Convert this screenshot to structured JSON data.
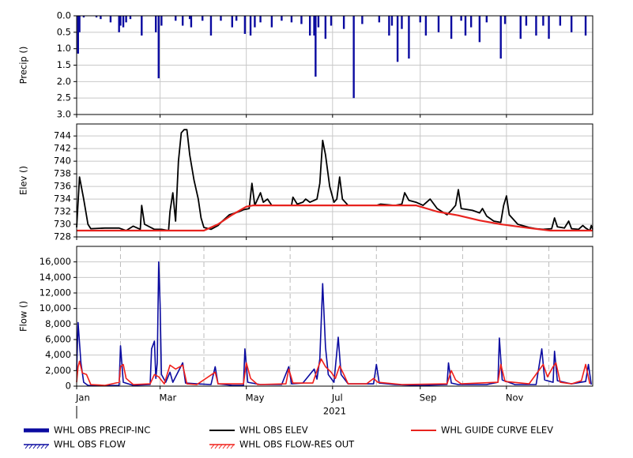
{
  "chart_data": [
    {
      "type": "bar",
      "y_label": "Precip ()",
      "xlim": [
        0,
        365
      ],
      "ylim": [
        3,
        0
      ],
      "xticks": [
        0,
        59,
        120,
        181,
        243,
        304
      ],
      "grid": true,
      "yticks": [
        {
          "value": 0,
          "label": "0.0"
        },
        0.5,
        {
          "value": 1,
          "label": "1.0"
        },
        1.5,
        {
          "value": 2,
          "label": "2.0"
        },
        2.5,
        {
          "value": 3,
          "label": "3.0"
        }
      ],
      "series": [
        {
          "name": "WHL OBS PRECIP-INC",
          "color": "#0a0aa0",
          "x": [
            1,
            2,
            5,
            14,
            17,
            24,
            30,
            31,
            33,
            35,
            38,
            46,
            56,
            58,
            60,
            70,
            75,
            80,
            81,
            89,
            95,
            102,
            110,
            113,
            119,
            123,
            126,
            130,
            138,
            145,
            152,
            159,
            165,
            168,
            169,
            171,
            176,
            180,
            189,
            196,
            202,
            214,
            221,
            223,
            227,
            230,
            235,
            243,
            247,
            256,
            265,
            272,
            275,
            279,
            285,
            290,
            300,
            303,
            314,
            318,
            325,
            330,
            334,
            342,
            350,
            360
          ],
          "values": [
            1.15,
            0.5,
            0.05,
            0.05,
            0.1,
            0.2,
            0.5,
            0.3,
            0.35,
            0.2,
            0.1,
            0.6,
            0.5,
            1.9,
            0.3,
            0.15,
            0.3,
            0.1,
            0.35,
            0.15,
            0.6,
            0.15,
            0.35,
            0.15,
            0.55,
            0.6,
            0.35,
            0.2,
            0.35,
            0.15,
            0.2,
            0.25,
            0.6,
            0.6,
            1.85,
            0.35,
            0.7,
            0.3,
            0.4,
            2.5,
            0.25,
            0.2,
            0.6,
            0.3,
            1.4,
            0.4,
            1.3,
            0.2,
            0.6,
            0.5,
            0.7,
            0.15,
            0.6,
            0.35,
            0.8,
            0.2,
            1.3,
            0.25,
            0.7,
            0.3,
            0.6,
            0.3,
            0.7,
            0.3,
            0.5,
            0.6
          ]
        }
      ]
    },
    {
      "type": "line",
      "y_label": "Elev ()",
      "xlim": [
        0,
        365
      ],
      "ylim": [
        728,
        745.9
      ],
      "xticks": [
        0,
        59,
        120,
        181,
        243,
        304
      ],
      "grid": true,
      "yticks": [
        728,
        730,
        732,
        734,
        736,
        738,
        740,
        742,
        744
      ],
      "series": [
        {
          "name": "WHL OBS ELEV",
          "color": "#000000",
          "width": 1.8,
          "x": [
            0,
            2,
            5,
            8,
            10,
            20,
            30,
            35,
            40,
            45,
            46,
            48,
            55,
            60,
            65,
            66,
            68,
            70,
            72,
            74,
            76,
            78,
            80,
            83,
            86,
            88,
            90,
            95,
            100,
            103,
            108,
            115,
            118,
            122,
            124,
            126,
            130,
            132,
            135,
            138,
            145,
            152,
            153,
            156,
            160,
            162,
            165,
            168,
            170,
            172,
            174,
            176,
            179,
            182,
            184,
            186,
            188,
            192,
            200,
            212,
            215,
            220,
            225,
            230,
            232,
            235,
            240,
            245,
            250,
            255,
            262,
            265,
            268,
            270,
            272,
            280,
            285,
            287,
            290,
            295,
            300,
            302,
            304,
            306,
            312,
            320,
            325,
            330,
            336,
            338,
            340,
            345,
            348,
            350,
            355,
            358,
            360,
            363,
            364,
            365
          ],
          "values": [
            729.5,
            737.5,
            734,
            730,
            729.3,
            729.4,
            729.4,
            729,
            729.7,
            729.2,
            733,
            730,
            729.2,
            729.2,
            729,
            732,
            735,
            730.5,
            740,
            744.5,
            745,
            745,
            741,
            737,
            734,
            731,
            729.5,
            729.2,
            729.8,
            730.5,
            731.5,
            732,
            732.3,
            732.5,
            736.5,
            733,
            735,
            733.5,
            734,
            733,
            733,
            733,
            734.3,
            733.2,
            733.5,
            734,
            733.5,
            733.8,
            734,
            736.5,
            743.3,
            741,
            736,
            733.5,
            734,
            737.5,
            734,
            733,
            733,
            733,
            733.2,
            733.1,
            733,
            733.2,
            735,
            733.8,
            733.5,
            733,
            734,
            732.5,
            731.5,
            732.2,
            733,
            735.5,
            732.5,
            732.2,
            731.8,
            732.5,
            731.3,
            730.5,
            730.3,
            733,
            734.5,
            731.5,
            730,
            729.5,
            729.3,
            729.2,
            729.3,
            731,
            729.6,
            729.4,
            730.5,
            729.3,
            729.2,
            729.8,
            729.4,
            729,
            729.8,
            729.2
          ]
        },
        {
          "name": "WHL GUIDE CURVE ELEV",
          "color": "#e8231e",
          "width": 2.2,
          "x": [
            0,
            90,
            100,
            110,
            120,
            125,
            240,
            255,
            270,
            285,
            300,
            320,
            335,
            365
          ],
          "values": [
            729,
            729,
            730,
            731.5,
            732.8,
            733,
            733,
            732,
            731.4,
            730.6,
            730,
            729.4,
            729,
            729
          ]
        }
      ]
    },
    {
      "type": "line",
      "y_label": "Flow ()",
      "x_label": "2021",
      "xlim": [
        0,
        365
      ],
      "ylim": [
        0,
        18000
      ],
      "xticks": [
        {
          "value": 0,
          "label": "Jan"
        },
        {
          "value": 59,
          "label": "Mar"
        },
        {
          "value": 120,
          "label": "May"
        },
        {
          "value": 181,
          "label": "Jul"
        },
        {
          "value": 243,
          "label": "Sep"
        },
        {
          "value": 304,
          "label": "Nov"
        }
      ],
      "xminor": [
        31,
        90,
        151,
        212,
        273,
        334
      ],
      "grid": true,
      "yticks": [
        0,
        {
          "value": 2000,
          "label": "2,000"
        },
        {
          "value": 4000,
          "label": "4,000"
        },
        {
          "value": 6000,
          "label": "6,000"
        },
        {
          "value": 8000,
          "label": "8,000"
        },
        {
          "value": 10000,
          "label": "10,000"
        },
        {
          "value": 12000,
          "label": "12,000"
        },
        {
          "value": 14000,
          "label": "14,000"
        },
        {
          "value": 16000,
          "label": "16,000"
        }
      ],
      "series": [
        {
          "name": "WHL OBS FLOW",
          "color": "#0a0aa0",
          "width": 1.6,
          "x": [
            0,
            1,
            3,
            5,
            8,
            15,
            30,
            31,
            33,
            40,
            52,
            53,
            55,
            56,
            57,
            58,
            59,
            60,
            63,
            66,
            68,
            75,
            77,
            85,
            95,
            98,
            100,
            110,
            118,
            119,
            121,
            130,
            140,
            145,
            150,
            152,
            160,
            168,
            170,
            172,
            174,
            176,
            178,
            182,
            185,
            187,
            192,
            200,
            210,
            212,
            214,
            225,
            240,
            245,
            262,
            263,
            265,
            270,
            290,
            298,
            299,
            301,
            310,
            325,
            329,
            331,
            337,
            338,
            340,
            350,
            360,
            362,
            364
          ],
          "values": [
            2000,
            8200,
            3000,
            500,
            100,
            50,
            100,
            5200,
            500,
            100,
            200,
            4800,
            5800,
            1000,
            3000,
            16000,
            10500,
            1500,
            500,
            1800,
            500,
            3000,
            400,
            300,
            200,
            2500,
            300,
            100,
            100,
            4800,
            500,
            200,
            200,
            200,
            2500,
            300,
            400,
            2200,
            900,
            3500,
            13200,
            5000,
            1500,
            500,
            6300,
            1500,
            300,
            300,
            300,
            2800,
            400,
            200,
            100,
            100,
            200,
            3000,
            400,
            200,
            200,
            500,
            6200,
            800,
            200,
            200,
            4800,
            800,
            500,
            4500,
            700,
            300,
            600,
            2800,
            200
          ]
        },
        {
          "name": "WHL OBS FLOW-RES OUT",
          "color": "#f0201a",
          "width": 1.6,
          "x": [
            0,
            1,
            2,
            4,
            7,
            10,
            20,
            30,
            31,
            33,
            35,
            40,
            52,
            55,
            58,
            62,
            66,
            70,
            75,
            78,
            85,
            98,
            100,
            118,
            120,
            123,
            128,
            148,
            150,
            153,
            167,
            170,
            173,
            176,
            180,
            183,
            186,
            189,
            192,
            205,
            210,
            213,
            230,
            262,
            265,
            268,
            272,
            298,
            300,
            303,
            320,
            330,
            333,
            337,
            339,
            342,
            350,
            357,
            360,
            363
          ],
          "values": [
            500,
            2500,
            3200,
            1700,
            1500,
            200,
            100,
            500,
            2500,
            2800,
            1000,
            200,
            300,
            1500,
            1200,
            300,
            2700,
            2200,
            2700,
            300,
            200,
            1800,
            300,
            300,
            3000,
            1000,
            200,
            300,
            2200,
            400,
            400,
            2000,
            3500,
            2500,
            1800,
            1000,
            2600,
            1500,
            300,
            300,
            1000,
            500,
            200,
            300,
            2000,
            800,
            300,
            500,
            2800,
            600,
            300,
            2800,
            1200,
            2500,
            3000,
            500,
            300,
            700,
            2800,
            300
          ]
        }
      ]
    }
  ]
}
